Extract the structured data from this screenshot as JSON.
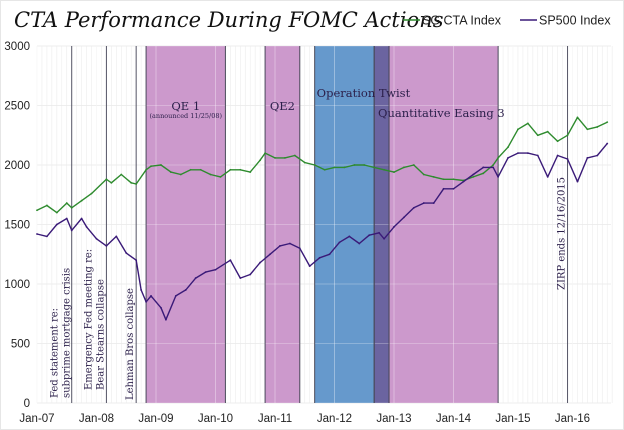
{
  "chart_data": {
    "type": "line",
    "title": "CTA Performance During FOMC Actions",
    "xlabel": "",
    "ylabel": "",
    "ylim": [
      0,
      3000
    ],
    "yticks": [
      0,
      500,
      1000,
      1500,
      2000,
      2500,
      3000
    ],
    "xlim": [
      "2007-01",
      "2016-09"
    ],
    "xticks": [
      {
        "label": "Jan-07",
        "date": "2007-01"
      },
      {
        "label": "Jan-08",
        "date": "2008-01"
      },
      {
        "label": "Jan-09",
        "date": "2009-01"
      },
      {
        "label": "Jan-10",
        "date": "2010-01"
      },
      {
        "label": "Jan-11",
        "date": "2011-01"
      },
      {
        "label": "Jan-12",
        "date": "2012-01"
      },
      {
        "label": "Jan-13",
        "date": "2013-01"
      },
      {
        "label": "Jan-14",
        "date": "2014-01"
      },
      {
        "label": "Jan-15",
        "date": "2015-01"
      },
      {
        "label": "Jan-16",
        "date": "2016-01"
      }
    ],
    "grid": true,
    "legend": {
      "position": "top-right"
    },
    "series": [
      {
        "name": "SG CTA Index",
        "color": "#2e8b2e",
        "points": [
          [
            "2007-01",
            1620
          ],
          [
            "2007-03",
            1660
          ],
          [
            "2007-05",
            1600
          ],
          [
            "2007-07",
            1680
          ],
          [
            "2007-08",
            1640
          ],
          [
            "2007-10",
            1700
          ],
          [
            "2007-12",
            1760
          ],
          [
            "2008-03",
            1880
          ],
          [
            "2008-04",
            1850
          ],
          [
            "2008-06",
            1920
          ],
          [
            "2008-08",
            1850
          ],
          [
            "2008-09",
            1840
          ],
          [
            "2008-11",
            1960
          ],
          [
            "2008-12",
            1990
          ],
          [
            "2009-02",
            2000
          ],
          [
            "2009-04",
            1940
          ],
          [
            "2009-06",
            1920
          ],
          [
            "2009-08",
            1960
          ],
          [
            "2009-10",
            1960
          ],
          [
            "2009-12",
            1920
          ],
          [
            "2010-02",
            1900
          ],
          [
            "2010-04",
            1960
          ],
          [
            "2010-06",
            1960
          ],
          [
            "2010-08",
            1940
          ],
          [
            "2010-10",
            2040
          ],
          [
            "2010-11",
            2100
          ],
          [
            "2011-01",
            2060
          ],
          [
            "2011-03",
            2060
          ],
          [
            "2011-05",
            2080
          ],
          [
            "2011-07",
            2020
          ],
          [
            "2011-09",
            2000
          ],
          [
            "2011-11",
            1960
          ],
          [
            "2012-01",
            1980
          ],
          [
            "2012-03",
            1980
          ],
          [
            "2012-05",
            2000
          ],
          [
            "2012-07",
            2000
          ],
          [
            "2012-09",
            1980
          ],
          [
            "2012-11",
            1960
          ],
          [
            "2013-01",
            1940
          ],
          [
            "2013-03",
            1980
          ],
          [
            "2013-05",
            2000
          ],
          [
            "2013-07",
            1920
          ],
          [
            "2013-09",
            1900
          ],
          [
            "2013-11",
            1880
          ],
          [
            "2014-01",
            1880
          ],
          [
            "2014-03",
            1870
          ],
          [
            "2014-05",
            1900
          ],
          [
            "2014-07",
            1930
          ],
          [
            "2014-09",
            2000
          ],
          [
            "2014-10",
            2060
          ],
          [
            "2014-12",
            2150
          ],
          [
            "2015-02",
            2300
          ],
          [
            "2015-04",
            2350
          ],
          [
            "2015-06",
            2250
          ],
          [
            "2015-08",
            2280
          ],
          [
            "2015-10",
            2200
          ],
          [
            "2015-12",
            2250
          ],
          [
            "2016-02",
            2400
          ],
          [
            "2016-04",
            2300
          ],
          [
            "2016-06",
            2320
          ],
          [
            "2016-08",
            2360
          ]
        ]
      },
      {
        "name": "SP500 Index",
        "color": "#3a1a78",
        "points": [
          [
            "2007-01",
            1420
          ],
          [
            "2007-03",
            1400
          ],
          [
            "2007-05",
            1500
          ],
          [
            "2007-07",
            1550
          ],
          [
            "2007-08",
            1450
          ],
          [
            "2007-10",
            1550
          ],
          [
            "2007-11",
            1480
          ],
          [
            "2008-01",
            1380
          ],
          [
            "2008-03",
            1320
          ],
          [
            "2008-05",
            1400
          ],
          [
            "2008-07",
            1260
          ],
          [
            "2008-09",
            1200
          ],
          [
            "2008-10",
            950
          ],
          [
            "2008-11",
            850
          ],
          [
            "2008-12",
            900
          ],
          [
            "2009-02",
            800
          ],
          [
            "2009-03",
            700
          ],
          [
            "2009-05",
            900
          ],
          [
            "2009-07",
            950
          ],
          [
            "2009-09",
            1050
          ],
          [
            "2009-11",
            1100
          ],
          [
            "2010-01",
            1120
          ],
          [
            "2010-04",
            1200
          ],
          [
            "2010-06",
            1050
          ],
          [
            "2010-08",
            1080
          ],
          [
            "2010-10",
            1180
          ],
          [
            "2010-12",
            1250
          ],
          [
            "2011-02",
            1320
          ],
          [
            "2011-04",
            1340
          ],
          [
            "2011-06",
            1300
          ],
          [
            "2011-08",
            1150
          ],
          [
            "2011-10",
            1220
          ],
          [
            "2011-12",
            1250
          ],
          [
            "2012-02",
            1350
          ],
          [
            "2012-04",
            1400
          ],
          [
            "2012-06",
            1340
          ],
          [
            "2012-08",
            1410
          ],
          [
            "2012-10",
            1430
          ],
          [
            "2012-11",
            1380
          ],
          [
            "2013-01",
            1480
          ],
          [
            "2013-03",
            1560
          ],
          [
            "2013-05",
            1640
          ],
          [
            "2013-07",
            1680
          ],
          [
            "2013-09",
            1680
          ],
          [
            "2013-11",
            1800
          ],
          [
            "2014-01",
            1800
          ],
          [
            "2014-03",
            1860
          ],
          [
            "2014-05",
            1920
          ],
          [
            "2014-07",
            1980
          ],
          [
            "2014-09",
            1980
          ],
          [
            "2014-10",
            1900
          ],
          [
            "2014-12",
            2060
          ],
          [
            "2015-02",
            2100
          ],
          [
            "2015-04",
            2100
          ],
          [
            "2015-06",
            2080
          ],
          [
            "2015-08",
            1900
          ],
          [
            "2015-10",
            2080
          ],
          [
            "2015-12",
            2050
          ],
          [
            "2016-02",
            1860
          ],
          [
            "2016-04",
            2060
          ],
          [
            "2016-06",
            2080
          ],
          [
            "2016-08",
            2180
          ]
        ]
      }
    ],
    "bands": [
      {
        "name": "qe1",
        "label": "QE 1",
        "sublabel": "(announced 11/25/08)",
        "start": "2008-11",
        "end": "2010-03",
        "color": "#cc99cc"
      },
      {
        "name": "qe2",
        "label": "QE2",
        "sublabel": "",
        "start": "2010-11",
        "end": "2011-06",
        "color": "#cc99cc"
      },
      {
        "name": "operation-twist",
        "label": "Operation Twist",
        "sublabel": "",
        "start": "2011-09",
        "end": "2012-09",
        "color": "#6699cc"
      },
      {
        "name": "twist-qe3-overlap",
        "label": "",
        "sublabel": "",
        "start": "2012-09",
        "end": "2012-12",
        "color": "#6b64a0"
      },
      {
        "name": "qe3",
        "label": "Quantitative Easing 3",
        "sublabel": "",
        "start": "2012-12",
        "end": "2014-10",
        "color": "#cc99cc"
      }
    ],
    "events": [
      {
        "name": "fed-subprime",
        "date": "2007-08",
        "lines": [
          "Fed statement re:",
          "subprime mortgage crisis"
        ]
      },
      {
        "name": "bear-stearns",
        "date": "2008-03",
        "lines": [
          "Emergency Fed meeting re:",
          "Bear Stearns collapse"
        ]
      },
      {
        "name": "lehman",
        "date": "2008-09",
        "lines": [
          "Lehman Bros collapse"
        ]
      },
      {
        "name": "zirp-end",
        "date": "2015-12",
        "lines": [
          "ZIRP ends 12/16/2015"
        ]
      }
    ]
  }
}
